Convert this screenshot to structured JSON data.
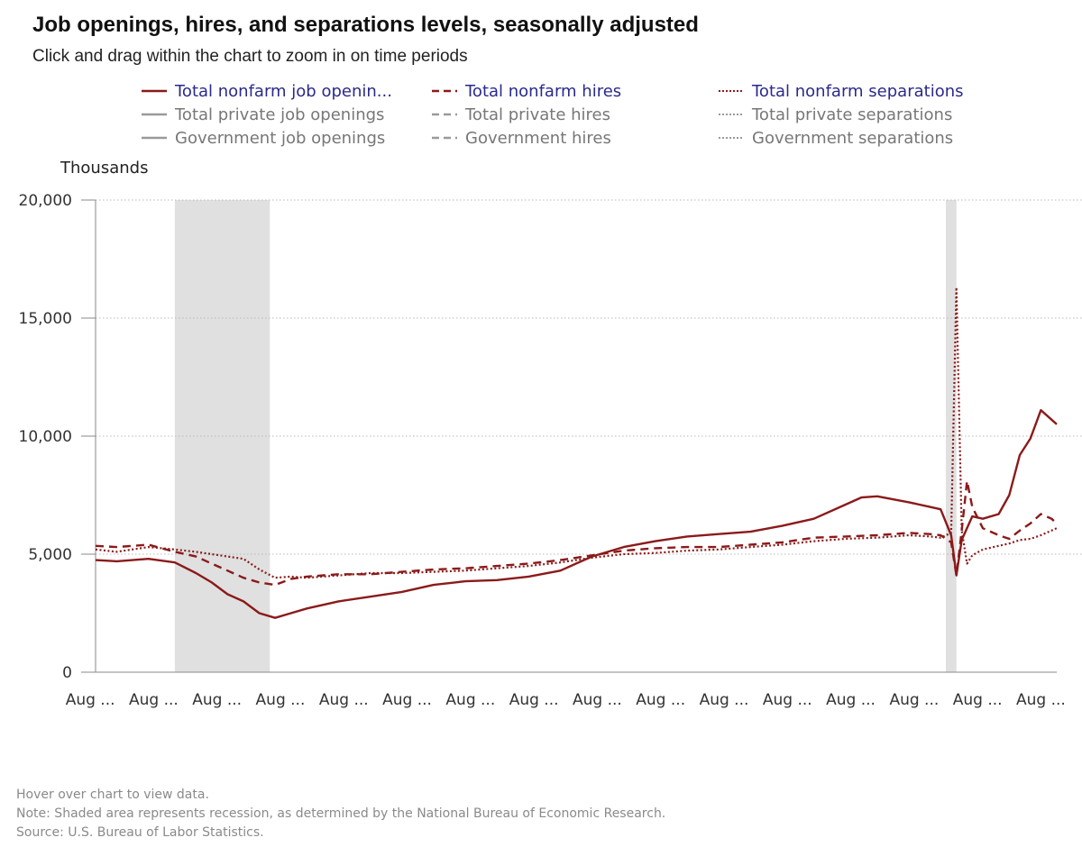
{
  "title": "Job openings, hires, and separations levels, seasonally adjusted",
  "subtitle": "Click and drag within the chart to zoom in on time periods",
  "legend": [
    {
      "label": "Total nonfarm job openin...",
      "style": "solid",
      "state": "active",
      "color": "#8b1a1a"
    },
    {
      "label": "Total private job openings",
      "style": "solid",
      "state": "inactive",
      "color": "#9a9a9a"
    },
    {
      "label": "Government job openings",
      "style": "solid",
      "state": "inactive",
      "color": "#9a9a9a"
    },
    {
      "label": "Total nonfarm hires",
      "style": "dashed",
      "state": "active",
      "color": "#8b1a1a"
    },
    {
      "label": "Total private hires",
      "style": "dashed",
      "state": "inactive",
      "color": "#9a9a9a"
    },
    {
      "label": "Government hires",
      "style": "dashed",
      "state": "inactive",
      "color": "#9a9a9a"
    },
    {
      "label": "Total nonfarm separations",
      "style": "dotted",
      "state": "active",
      "color": "#8b1a1a"
    },
    {
      "label": "Total private separations",
      "style": "dotted",
      "state": "inactive",
      "color": "#9a9a9a"
    },
    {
      "label": "Government separations",
      "style": "dotted",
      "state": "inactive",
      "color": "#9a9a9a"
    }
  ],
  "footer": {
    "hover": "Hover over chart to view data.",
    "note": "Note: Shaded area represents recession, as determined by the National Bureau of Economic Research.",
    "source": "Source: U.S. Bureau of Labor Statistics."
  },
  "chart_data": {
    "type": "line",
    "ylabel": "Thousands",
    "ylim": [
      0,
      20000
    ],
    "yticks": [
      0,
      5000,
      10000,
      15000,
      20000
    ],
    "ytick_labels": [
      "0",
      "5,000",
      "10,000",
      "15,000",
      "20,000"
    ],
    "xlim": [
      2006.667,
      2021.833
    ],
    "xticks": [
      2006.583,
      2007.583,
      2008.583,
      2009.583,
      2010.583,
      2011.583,
      2012.583,
      2013.583,
      2014.583,
      2015.583,
      2016.583,
      2017.583,
      2018.583,
      2019.583,
      2020.583,
      2021.583
    ],
    "xtick_labels": [
      "Aug ...",
      "Aug ...",
      "Aug ...",
      "Aug ...",
      "Aug ...",
      "Aug ...",
      "Aug ...",
      "Aug ...",
      "Aug ...",
      "Aug ...",
      "Aug ...",
      "Aug ...",
      "Aug ...",
      "Aug ...",
      "Aug ...",
      "Aug ..."
    ],
    "grid": "horizontal-dotted",
    "legend_position": "top",
    "recessions": [
      [
        2007.917,
        2009.417
      ],
      [
        2020.083,
        2020.25
      ]
    ],
    "recession_color": "#e0e0e0",
    "series": [
      {
        "name": "Total nonfarm job openin...",
        "style": "solid",
        "color": "#8b1a1a",
        "x": [
          2006.667,
          2007.0,
          2007.5,
          2007.917,
          2008.25,
          2008.5,
          2008.75,
          2009.0,
          2009.25,
          2009.5,
          2009.75,
          2010.0,
          2010.5,
          2011.0,
          2011.5,
          2012.0,
          2012.5,
          2013.0,
          2013.5,
          2014.0,
          2014.5,
          2015.0,
          2015.5,
          2016.0,
          2016.5,
          2017.0,
          2017.5,
          2018.0,
          2018.5,
          2018.75,
          2019.0,
          2019.5,
          2019.833,
          2020.0,
          2020.167,
          2020.25,
          2020.333,
          2020.5,
          2020.667,
          2020.917,
          2021.083,
          2021.25,
          2021.417,
          2021.583,
          2021.75,
          2021.833
        ],
        "y": [
          4750,
          4700,
          4800,
          4650,
          4200,
          3800,
          3300,
          3000,
          2500,
          2300,
          2500,
          2700,
          3000,
          3200,
          3400,
          3700,
          3850,
          3900,
          4050,
          4300,
          4900,
          5300,
          5550,
          5750,
          5850,
          5950,
          6200,
          6500,
          7100,
          7400,
          7450,
          7200,
          7000,
          6900,
          5800,
          4100,
          5600,
          6600,
          6500,
          6700,
          7500,
          9200,
          9900,
          11100,
          10700,
          10500
        ]
      },
      {
        "name": "Total nonfarm hires",
        "style": "dashed",
        "color": "#8b1a1a",
        "x": [
          2006.667,
          2007.0,
          2007.5,
          2007.917,
          2008.25,
          2008.5,
          2008.75,
          2009.0,
          2009.25,
          2009.5,
          2009.75,
          2010.0,
          2010.5,
          2011.0,
          2011.5,
          2012.0,
          2012.5,
          2013.0,
          2013.5,
          2014.0,
          2014.5,
          2015.0,
          2015.5,
          2016.0,
          2016.5,
          2017.0,
          2017.5,
          2018.0,
          2018.5,
          2019.0,
          2019.5,
          2019.833,
          2020.0,
          2020.167,
          2020.25,
          2020.333,
          2020.417,
          2020.5,
          2020.667,
          2020.917,
          2021.083,
          2021.25,
          2021.417,
          2021.583,
          2021.75,
          2021.833
        ],
        "y": [
          5350,
          5300,
          5400,
          5100,
          4900,
          4600,
          4300,
          4000,
          3800,
          3700,
          3950,
          4050,
          4150,
          4150,
          4250,
          4350,
          4400,
          4500,
          4600,
          4750,
          4950,
          5150,
          5250,
          5300,
          5300,
          5400,
          5500,
          5700,
          5750,
          5800,
          5900,
          5850,
          5800,
          5500,
          4100,
          6000,
          8100,
          7000,
          6100,
          5800,
          5650,
          6000,
          6300,
          6700,
          6500,
          6300
        ]
      },
      {
        "name": "Total nonfarm separations",
        "style": "dotted",
        "color": "#8b1a1a",
        "x": [
          2006.667,
          2007.0,
          2007.5,
          2007.917,
          2008.25,
          2008.5,
          2008.75,
          2009.0,
          2009.25,
          2009.5,
          2009.75,
          2010.0,
          2010.5,
          2011.0,
          2011.5,
          2012.0,
          2012.5,
          2013.0,
          2013.5,
          2014.0,
          2014.5,
          2015.0,
          2015.5,
          2016.0,
          2016.5,
          2017.0,
          2017.5,
          2018.0,
          2018.5,
          2019.0,
          2019.5,
          2019.833,
          2020.0,
          2020.167,
          2020.25,
          2020.333,
          2020.417,
          2020.5,
          2020.667,
          2020.917,
          2021.083,
          2021.25,
          2021.417,
          2021.583,
          2021.75,
          2021.833
        ],
        "y": [
          5200,
          5100,
          5300,
          5200,
          5100,
          5000,
          4900,
          4800,
          4350,
          4000,
          4050,
          4000,
          4100,
          4200,
          4200,
          4250,
          4300,
          4400,
          4500,
          4650,
          4850,
          5000,
          5050,
          5150,
          5200,
          5300,
          5400,
          5550,
          5650,
          5700,
          5800,
          5750,
          5700,
          5900,
          16300,
          6000,
          4600,
          4950,
          5200,
          5350,
          5450,
          5600,
          5650,
          5800,
          6000,
          6100
        ]
      }
    ]
  }
}
